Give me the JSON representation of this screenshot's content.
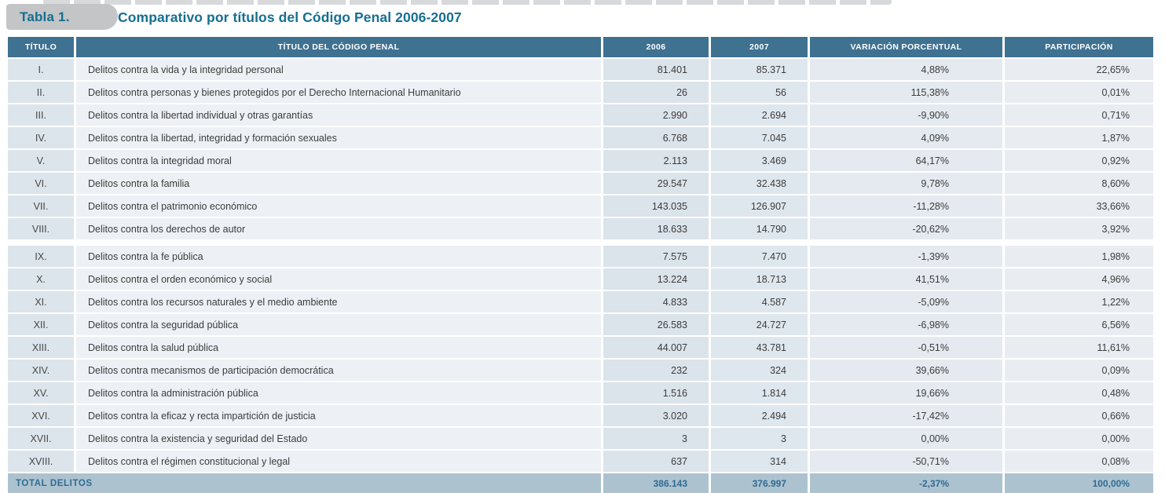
{
  "title_tab": "Tabla 1.",
  "title": "Comparativo por títulos del Código Penal 2006-2007",
  "table": {
    "columns": [
      "TÍTULO",
      "TÍTULO DEL CÓDIGO PENAL",
      "2006",
      "2007",
      "VARIACIÓN PORCENTUAL",
      "PARTICIPACIÓN"
    ],
    "rows": [
      {
        "titulo": "I.",
        "descripcion": "Delitos contra la vida y la integridad personal",
        "y2006": "81.401",
        "y2007": "85.371",
        "variacion": "4,88%",
        "participacion": "22,65%"
      },
      {
        "titulo": "II.",
        "descripcion": "Delitos contra personas y bienes protegidos por el Derecho Internacional Humanitario",
        "y2006": "26",
        "y2007": "56",
        "variacion": "115,38%",
        "participacion": "0,01%"
      },
      {
        "titulo": "III.",
        "descripcion": "Delitos contra la libertad individual y otras garantías",
        "y2006": "2.990",
        "y2007": "2.694",
        "variacion": "-9,90%",
        "participacion": "0,71%"
      },
      {
        "titulo": "IV.",
        "descripcion": "Delitos contra la libertad, integridad y formación sexuales",
        "y2006": "6.768",
        "y2007": "7.045",
        "variacion": "4,09%",
        "participacion": "1,87%"
      },
      {
        "titulo": "V.",
        "descripcion": "Delitos contra la integridad moral",
        "y2006": "2.113",
        "y2007": "3.469",
        "variacion": "64,17%",
        "participacion": "0,92%"
      },
      {
        "titulo": "VI.",
        "descripcion": "Delitos contra la familia",
        "y2006": "29.547",
        "y2007": "32.438",
        "variacion": "9,78%",
        "participacion": "8,60%"
      },
      {
        "titulo": "VII.",
        "descripcion": "Delitos contra el patrimonio económico",
        "y2006": "143.035",
        "y2007": "126.907",
        "variacion": "-11,28%",
        "participacion": "33,66%"
      },
      {
        "titulo": "VIII.",
        "descripcion": "Delitos contra los derechos de autor",
        "y2006": "18.633",
        "y2007": "14.790",
        "variacion": "-20,62%",
        "participacion": "3,92%"
      },
      {
        "titulo": "IX.",
        "descripcion": "Delitos contra la fe pública",
        "y2006": "7.575",
        "y2007": "7.470",
        "variacion": "-1,39%",
        "participacion": "1,98%"
      },
      {
        "titulo": "X.",
        "descripcion": "Delitos contra el orden económico y social",
        "y2006": "13.224",
        "y2007": "18.713",
        "variacion": "41,51%",
        "participacion": "4,96%"
      },
      {
        "titulo": "XI.",
        "descripcion": "Delitos contra los recursos naturales y el medio ambiente",
        "y2006": "4.833",
        "y2007": "4.587",
        "variacion": "-5,09%",
        "participacion": "1,22%"
      },
      {
        "titulo": "XII.",
        "descripcion": "Delitos contra la seguridad pública",
        "y2006": "26.583",
        "y2007": "24.727",
        "variacion": "-6,98%",
        "participacion": "6,56%"
      },
      {
        "titulo": "XIII.",
        "descripcion": "Delitos contra la salud pública",
        "y2006": "44.007",
        "y2007": "43.781",
        "variacion": "-0,51%",
        "participacion": "11,61%"
      },
      {
        "titulo": "XIV.",
        "descripcion": "Delitos contra mecanismos de participación democrática",
        "y2006": "232",
        "y2007": "324",
        "variacion": "39,66%",
        "participacion": "0,09%"
      },
      {
        "titulo": "XV.",
        "descripcion": "Delitos contra la administración pública",
        "y2006": "1.516",
        "y2007": "1.814",
        "variacion": "19,66%",
        "participacion": "0,48%"
      },
      {
        "titulo": "XVI.",
        "descripcion": "Delitos contra la eficaz y recta impartición de justicia",
        "y2006": "3.020",
        "y2007": "2.494",
        "variacion": "-17,42%",
        "participacion": "0,66%"
      },
      {
        "titulo": "XVII.",
        "descripcion": "Delitos contra la existencia y seguridad del Estado",
        "y2006": "3",
        "y2007": "3",
        "variacion": "0,00%",
        "participacion": "0,00%"
      },
      {
        "titulo": "XVIII.",
        "descripcion": "Delitos contra el régimen constitucional y legal",
        "y2006": "637",
        "y2007": "314",
        "variacion": "-50,71%",
        "participacion": "0,08%"
      }
    ],
    "total": {
      "label": "TOTAL DELITOS",
      "y2006": "386.143",
      "y2007": "376.997",
      "variacion": "-2,37%",
      "participacion": "100,00%"
    }
  },
  "colors": {
    "accent_teal": "#156f91",
    "header_bg": "#3f7191",
    "total_row_bg": "#adc2cf",
    "tab_bg": "#c3c5c7"
  }
}
